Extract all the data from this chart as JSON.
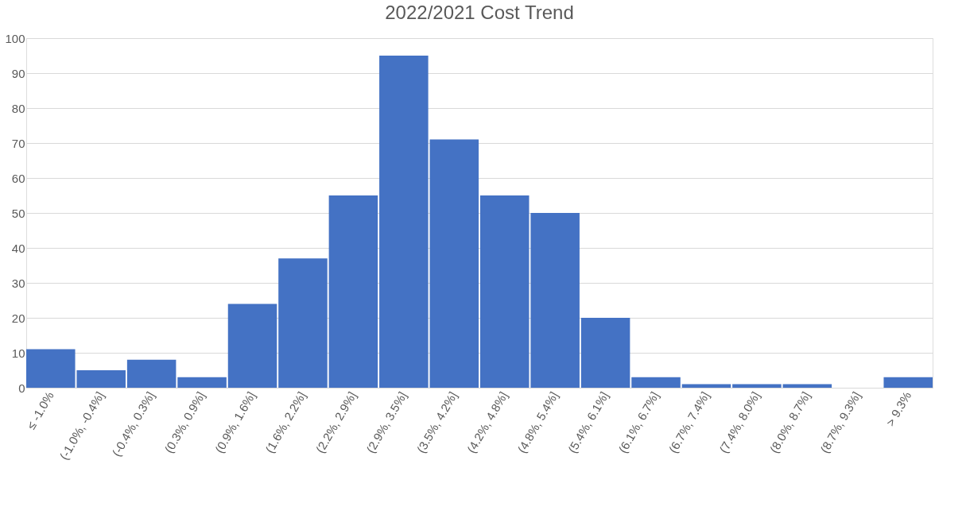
{
  "chart_data": {
    "type": "bar",
    "title": "2022/2021 Cost Trend",
    "categories": [
      "≤ -1.0%",
      "(-1.0%, -0.4%]",
      "(-0.4%, 0.3%]",
      "(0.3%, 0.9%]",
      "(0.9%, 1.6%]",
      "(1.6%, 2.2%]",
      "(2.2%, 2.9%]",
      "(2.9%, 3.5%]",
      "(3.5%, 4.2%]",
      "(4.2%, 4.8%]",
      "(4.8%, 5.4%]",
      "(5.4%, 6.1%]",
      "(6.1%, 6.7%]",
      "(6.7%, 7.4%]",
      "(7.4%, 8.0%]",
      "(8.0%, 8.7%]",
      "(8.7%, 9.3%]",
      "> 9.3%"
    ],
    "values": [
      11,
      5,
      8,
      3,
      24,
      37,
      55,
      95,
      71,
      55,
      50,
      20,
      3,
      1,
      1,
      1,
      0,
      3
    ],
    "color": "#4472c4",
    "ylim": [
      0,
      100
    ],
    "yticks": [
      0,
      10,
      20,
      30,
      40,
      50,
      60,
      70,
      80,
      90,
      100
    ],
    "grid": "y"
  }
}
